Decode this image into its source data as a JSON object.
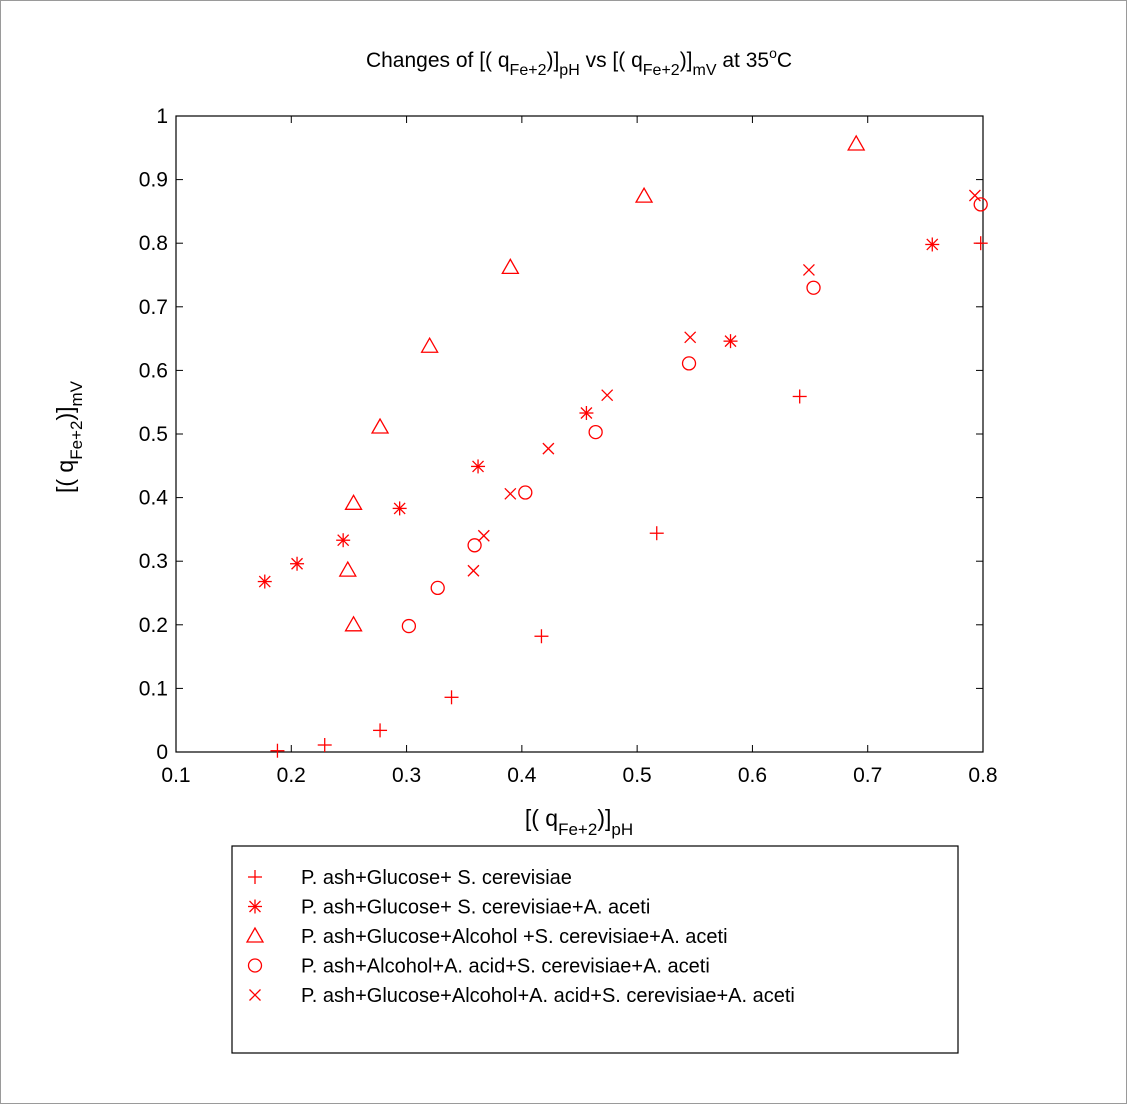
{
  "chart_data": {
    "type": "scatter",
    "title": {
      "prefix": "Changes of [( q",
      "sub1": "Fe+2",
      "mid1": ")]",
      "sub2": "pH",
      "mid2": " vs [( q",
      "sub3": "Fe+2",
      "mid3": ")]",
      "sub4": "mV",
      "suffix1": " at 35",
      "sup": "o",
      "suffix2": "C"
    },
    "xlabel": {
      "main": "[( q",
      "sub1": "Fe+2",
      "mid": ")]",
      "sub2": "pH"
    },
    "ylabel": {
      "main": "[( q",
      "sub1": "Fe+2",
      "mid": ")]",
      "sub2": "mV"
    },
    "xlim": [
      0.1,
      0.8
    ],
    "ylim": [
      0,
      1
    ],
    "xticks": [
      "0.1",
      "0.2",
      "0.3",
      "0.4",
      "0.5",
      "0.6",
      "0.7",
      "0.8"
    ],
    "yticks": [
      "0",
      "0.1",
      "0.2",
      "0.3",
      "0.4",
      "0.5",
      "0.6",
      "0.7",
      "0.8",
      "0.9",
      "1"
    ],
    "grid": false,
    "color": "#ff0000",
    "legend_position": "bottom-outside",
    "series": [
      {
        "name": "P. ash+Glucose+ S. cerevisiae",
        "marker": "plus",
        "x": [
          0.188,
          0.229,
          0.277,
          0.339,
          0.417,
          0.517,
          0.641,
          0.798
        ],
        "y": [
          0.002,
          0.011,
          0.034,
          0.086,
          0.182,
          0.344,
          0.559,
          0.8
        ]
      },
      {
        "name": "P. ash+Glucose+ S. cerevisiae+A. aceti",
        "marker": "star",
        "x": [
          0.177,
          0.205,
          0.245,
          0.294,
          0.362,
          0.456,
          0.581,
          0.756
        ],
        "y": [
          0.268,
          0.296,
          0.333,
          0.383,
          0.449,
          0.533,
          0.646,
          0.798
        ]
      },
      {
        "name": "P. ash+Glucose+Alcohol +S. cerevisiae+A. aceti",
        "marker": "triangle",
        "x": [
          0.254,
          0.249,
          0.254,
          0.277,
          0.32,
          0.39,
          0.506,
          0.69
        ],
        "y": [
          0.2,
          0.286,
          0.391,
          0.511,
          0.638,
          0.762,
          0.874,
          0.956
        ]
      },
      {
        "name": "P. ash+Alcohol+A. acid+S. cerevisiae+A. aceti",
        "marker": "circle",
        "x": [
          0.302,
          0.327,
          0.359,
          0.403,
          0.464,
          0.545,
          0.653,
          0.798
        ],
        "y": [
          0.198,
          0.258,
          0.325,
          0.408,
          0.503,
          0.611,
          0.73,
          0.861
        ]
      },
      {
        "name": "P. ash+Glucose+Alcohol+A. acid+S. cerevisiae+A. aceti",
        "marker": "x",
        "x": [
          0.358,
          0.367,
          0.39,
          0.423,
          0.474,
          0.546,
          0.649,
          0.793
        ],
        "y": [
          0.285,
          0.34,
          0.406,
          0.477,
          0.561,
          0.652,
          0.758,
          0.875
        ]
      }
    ]
  }
}
